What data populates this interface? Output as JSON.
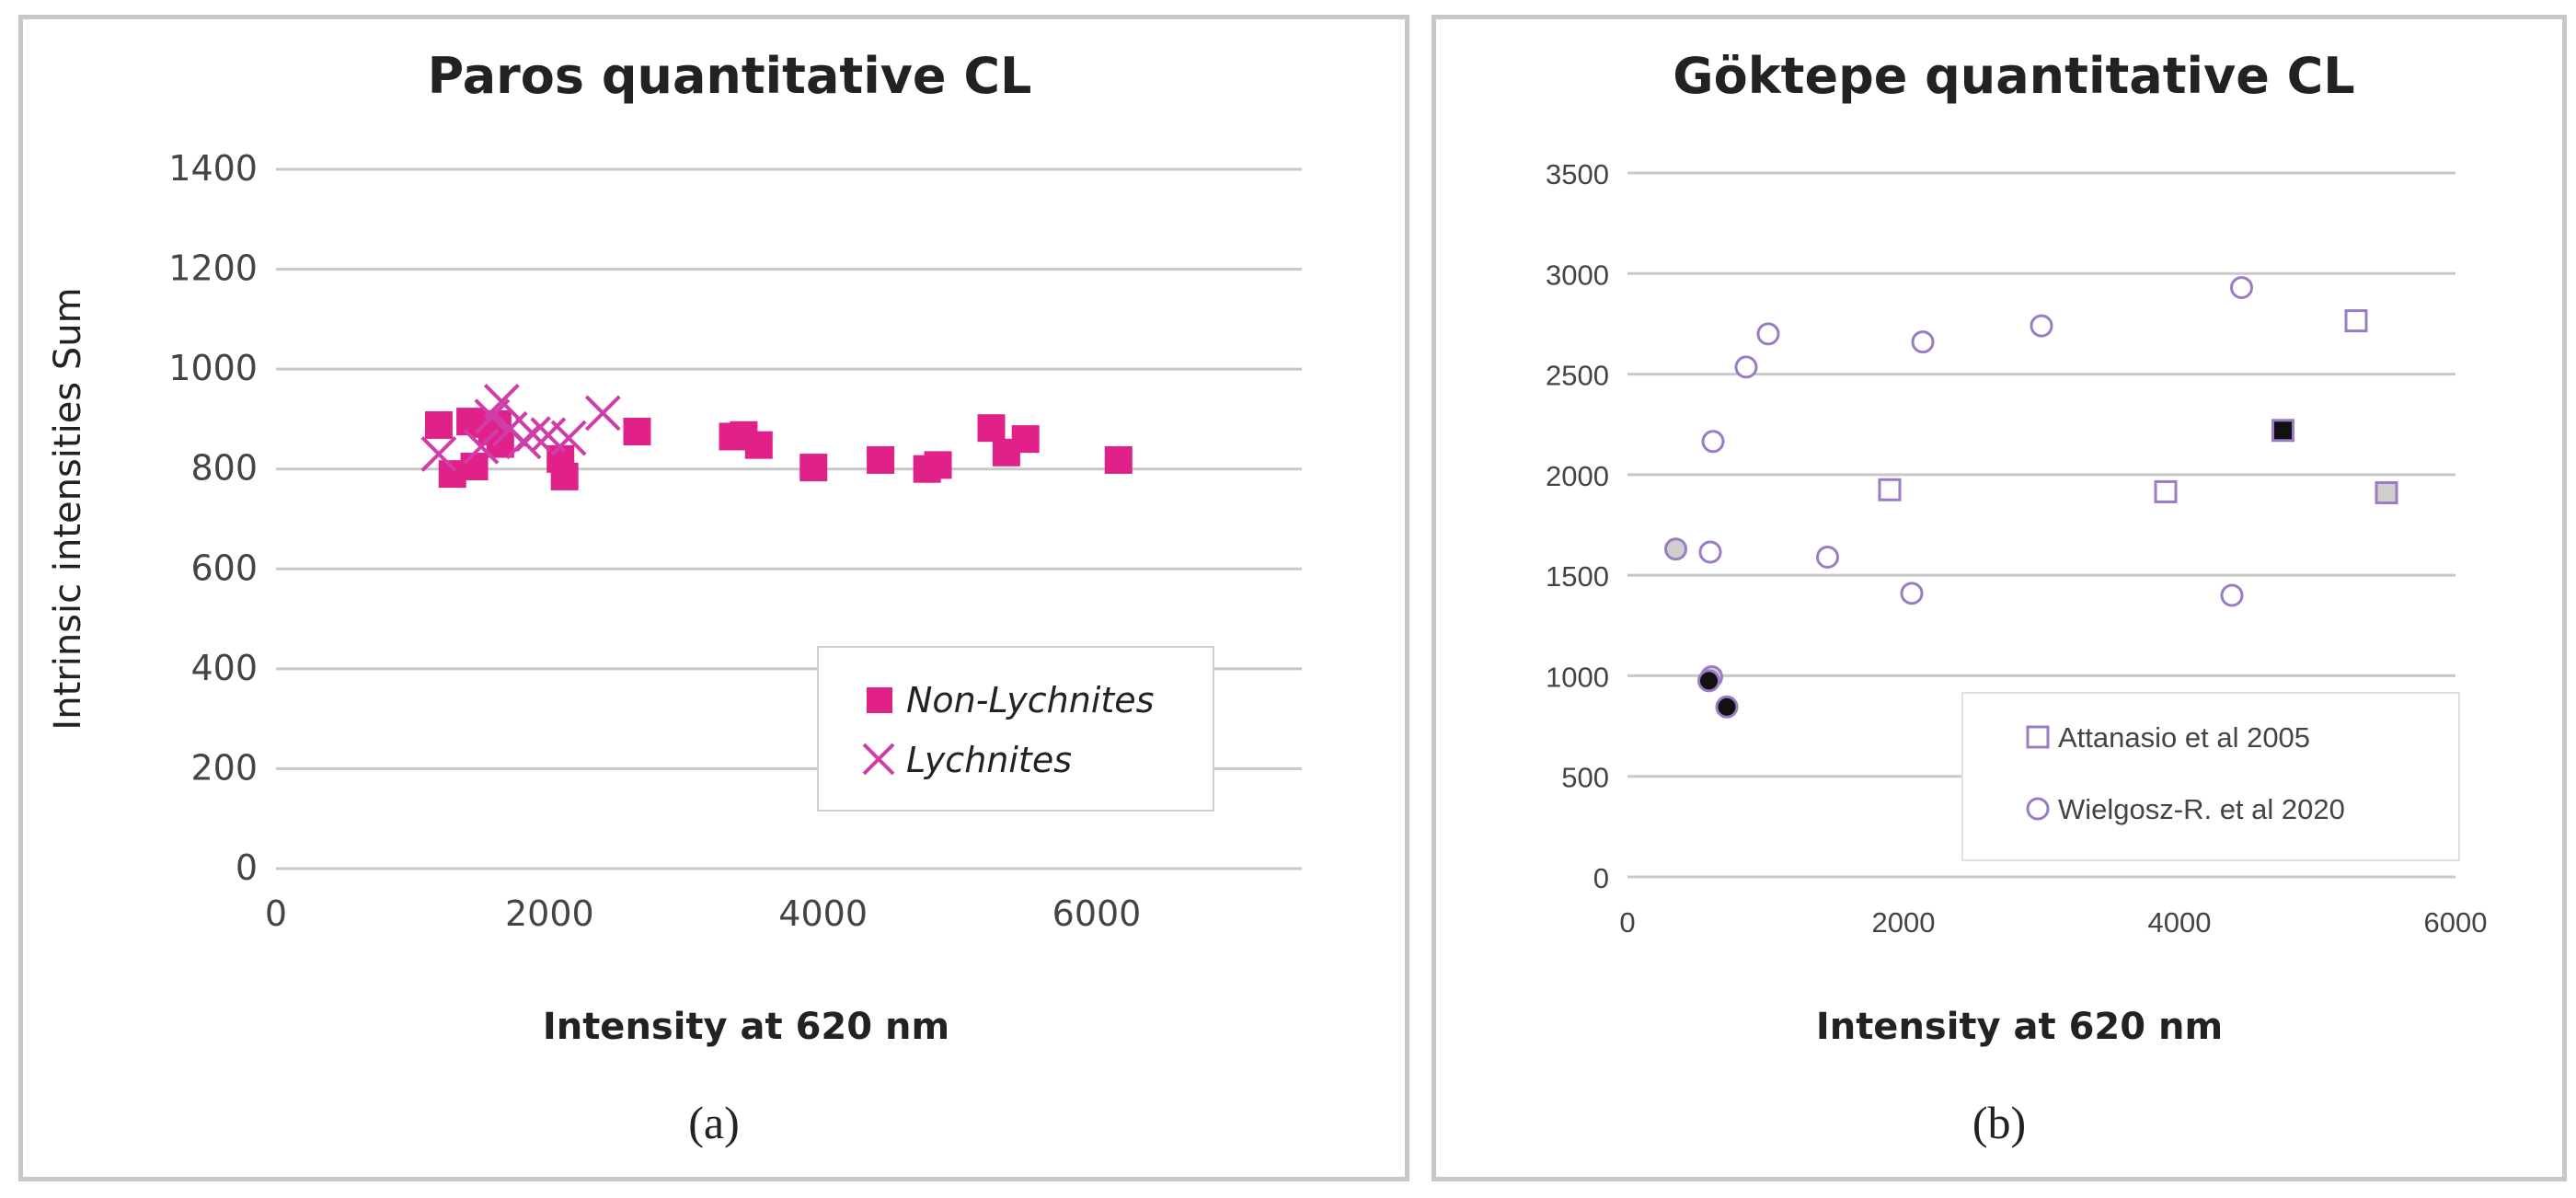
{
  "chart_data": [
    {
      "type": "scatter",
      "title": "Paros quantitative CL",
      "xlabel": "Intensity at 620 nm",
      "ylabel": "Intrinsic intensities Sum",
      "xlim": [
        0,
        7500
      ],
      "ylim": [
        0,
        1400
      ],
      "xticks": [
        "0",
        "2000",
        "4000",
        "6000"
      ],
      "yticks": [
        "0",
        "200",
        "400",
        "600",
        "800",
        "1000",
        "1200",
        "1400"
      ],
      "grid": true,
      "legend_position": "bottom-right",
      "sublabel": "(a)",
      "colors": {
        "marker": "#e0218a",
        "grid": "#c8c8c8"
      },
      "series": [
        {
          "name": "Non-Lychnites",
          "marker": "square",
          "points": [
            [
              1190,
              888
            ],
            [
              1290,
              790
            ],
            [
              1420,
              895
            ],
            [
              1450,
              805
            ],
            [
              1520,
              890
            ],
            [
              1580,
              875
            ],
            [
              1620,
              890
            ],
            [
              1640,
              850
            ],
            [
              2080,
              820
            ],
            [
              2110,
              785
            ],
            [
              2640,
              875
            ],
            [
              3340,
              865
            ],
            [
              3420,
              868
            ],
            [
              3530,
              848
            ],
            [
              3930,
              803
            ],
            [
              4420,
              818
            ],
            [
              4760,
              800
            ],
            [
              4840,
              808
            ],
            [
              5230,
              882
            ],
            [
              5340,
              833
            ],
            [
              5480,
              860
            ],
            [
              6160,
              818
            ]
          ]
        },
        {
          "name": "Lychnites",
          "marker": "x",
          "points": [
            [
              1190,
              830
            ],
            [
              1500,
              845
            ],
            [
              1580,
              905
            ],
            [
              1650,
              935
            ],
            [
              1710,
              880
            ],
            [
              1810,
              855
            ],
            [
              1880,
              870
            ],
            [
              1990,
              868
            ],
            [
              2140,
              862
            ],
            [
              2390,
              912
            ]
          ]
        }
      ]
    },
    {
      "type": "scatter",
      "title": "Göktepe quantitative CL",
      "xlabel": "Intensity at 620 nm",
      "ylabel": "",
      "xlim": [
        0,
        6000
      ],
      "ylim": [
        0,
        3500
      ],
      "xticks": [
        "0",
        "2000",
        "4000",
        "6000"
      ],
      "yticks": [
        "0",
        "500",
        "1000",
        "1500",
        "2000",
        "2500",
        "3000",
        "3500"
      ],
      "grid": true,
      "legend_position": "bottom-right",
      "sublabel": "(b)",
      "colors": {
        "marker": "#9a7cc4",
        "grid": "#c8c8c8",
        "filled_dark": "#111111",
        "filled_grey": "#cfcfcf"
      },
      "series": [
        {
          "name": "Attanasio et al 2005",
          "marker": "square-open",
          "points": [
            [
              1900,
              1925
            ],
            [
              3900,
              1915
            ],
            [
              5280,
              2765
            ]
          ]
        },
        {
          "name": "Attanasio et al 2005 (filled)",
          "marker": "square-filled",
          "in_legend": false,
          "points": [
            [
              4750,
              2220,
              "dark"
            ],
            [
              5500,
              1910,
              "grey"
            ]
          ]
        },
        {
          "name": "Wielgosz-R. et al 2020",
          "marker": "circle-open",
          "points": [
            [
              620,
              2165
            ],
            [
              860,
              2535
            ],
            [
              1020,
              2700
            ],
            [
              2140,
              2660
            ],
            [
              3000,
              2740
            ],
            [
              4450,
              2930
            ],
            [
              600,
              1615
            ],
            [
              1450,
              1590
            ],
            [
              2060,
              1410
            ],
            [
              4380,
              1400
            ]
          ]
        },
        {
          "name": "Wielgosz-R. et al 2020 (filled)",
          "marker": "circle-filled",
          "in_legend": false,
          "points": [
            [
              350,
              1630,
              "grey"
            ],
            [
              610,
              995,
              "grey"
            ],
            [
              590,
              975,
              "dark"
            ],
            [
              720,
              845,
              "dark"
            ]
          ]
        }
      ]
    }
  ]
}
